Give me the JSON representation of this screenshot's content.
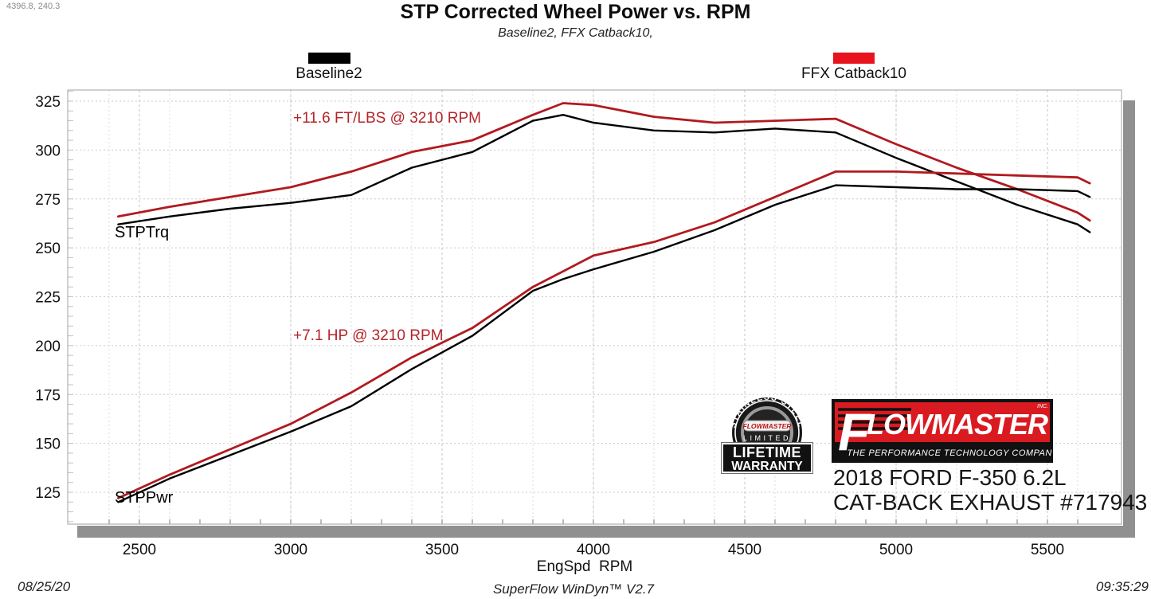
{
  "cursor_readout": "4396.8, 240.3",
  "header": {
    "title": "STP Corrected Wheel Power vs. RPM",
    "subtitle": "Baseline2, FFX Catback10,"
  },
  "legend": {
    "baseline": {
      "label": "Baseline2",
      "color": "#000000"
    },
    "ffx": {
      "label": "FFX Catback10",
      "color": "#e8131c"
    }
  },
  "annotations": {
    "torque_gain": "+11.6 FT/LBS @ 3210 RPM",
    "power_gain": "+7.1 HP @ 3210 RPM"
  },
  "curve_labels": {
    "torque": "STPTrq",
    "power": "STPPwr"
  },
  "axis": {
    "xlabel": "EngSpd  RPM"
  },
  "branding": {
    "badge": {
      "arc_text": "STAINLESS STEEL",
      "brand": "FLOWMASTER",
      "limited": "LIMITED",
      "line1": "LIFETIME",
      "line2": "WARRANTY"
    },
    "logo": {
      "letter": "F",
      "rest": "LOWMASTER",
      "inc": "INC.",
      "tagline": "THE PERFORMANCE TECHNOLOGY COMPANY",
      "red": "#da1a21"
    },
    "vehicle": {
      "line1": "2018 FORD F-350 6.2L",
      "line2": "CAT-BACK EXHAUST #717943"
    }
  },
  "footer": {
    "date": "08/25/20",
    "software": "SuperFlow WinDyn™ V2.7",
    "time": "09:35:29"
  },
  "chart_data": {
    "type": "line",
    "title": "STP Corrected Wheel Power vs. RPM",
    "subtitle": "Baseline2, FFX Catback10,",
    "xlabel": "EngSpd RPM",
    "ylabel": "",
    "xlim": [
      2330,
      5770
    ],
    "ylim": [
      108,
      331
    ],
    "x_ticks": [
      2500,
      3000,
      3500,
      4000,
      4500,
      5000,
      5500
    ],
    "y_ticks": [
      125,
      150,
      175,
      200,
      225,
      250,
      275,
      300,
      325
    ],
    "grid": true,
    "legend_position": "top",
    "x": [
      2430,
      2600,
      2800,
      3000,
      3200,
      3400,
      3600,
      3800,
      3900,
      4000,
      4200,
      4400,
      4600,
      4800,
      5000,
      5200,
      5400,
      5600,
      5640
    ],
    "series": [
      {
        "name": "STPTrq Baseline2",
        "unit": "FT/LBS",
        "color": "#000000",
        "width": 2.4,
        "values": [
          262,
          266,
          270,
          273,
          277,
          291,
          299,
          315,
          318,
          314,
          310,
          309,
          311,
          309,
          296,
          284,
          272,
          262,
          258
        ]
      },
      {
        "name": "STPTrq FFX Catback10",
        "unit": "FT/LBS",
        "color": "#b11a1f",
        "width": 2.8,
        "values": [
          266,
          271,
          276,
          281,
          289,
          299,
          305,
          318,
          324,
          323,
          317,
          314,
          315,
          316,
          303,
          291,
          280,
          268,
          264
        ]
      },
      {
        "name": "STPPwr Baseline2",
        "unit": "HP",
        "color": "#000000",
        "width": 2.4,
        "values": [
          120,
          132,
          144,
          156,
          169,
          188,
          205,
          228,
          234,
          239,
          248,
          259,
          272,
          282,
          281,
          280,
          280,
          279,
          276
        ]
      },
      {
        "name": "STPPwr FFX Catback10",
        "unit": "HP",
        "color": "#b11a1f",
        "width": 2.8,
        "values": [
          122,
          134,
          147,
          160,
          176,
          194,
          209,
          230,
          238,
          246,
          253,
          263,
          276,
          289,
          289,
          288,
          287,
          286,
          283
        ]
      }
    ],
    "annotations": [
      {
        "text": "+11.6 FT/LBS @ 3210 RPM",
        "rpm": 3210,
        "color": "#b3242b"
      },
      {
        "text": "+7.1 HP @ 3210 RPM",
        "rpm": 3210,
        "color": "#b3242b"
      }
    ]
  }
}
